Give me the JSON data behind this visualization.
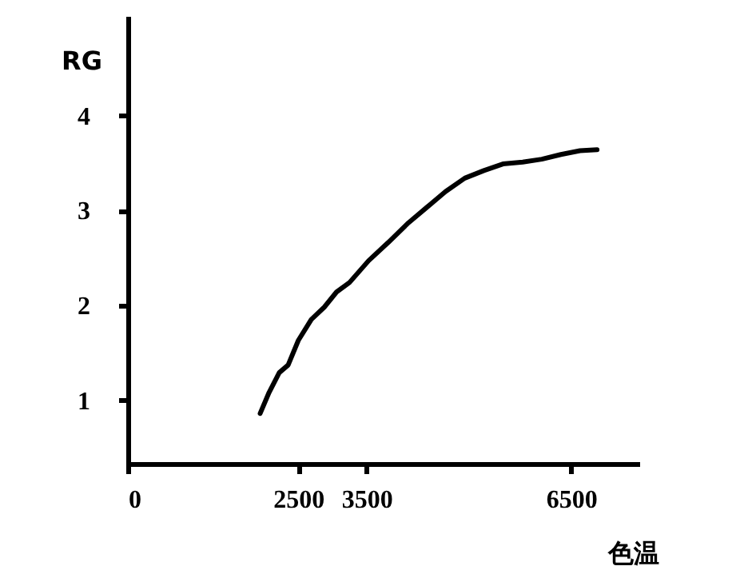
{
  "chart_data": {
    "type": "line",
    "xlabel": "色温",
    "ylabel": "RG",
    "x": [
      1940,
      2070,
      2220,
      2350,
      2500,
      2690,
      2880,
      3060,
      3250,
      3530,
      3815,
      4100,
      4380,
      4660,
      4940,
      5220,
      5500,
      5790,
      6070,
      6350,
      6630,
      6880
    ],
    "series": [
      {
        "color": "#000000",
        "values": [
          0.86,
          1.08,
          1.29,
          1.37,
          1.63,
          1.85,
          1.98,
          2.14,
          2.24,
          2.47,
          2.66,
          2.86,
          3.03,
          3.2,
          3.34,
          3.42,
          3.49,
          3.51,
          3.54,
          3.59,
          3.63,
          3.64
        ]
      }
    ],
    "xlim": [
      0,
      7500
    ],
    "xticks": [
      0,
      2500,
      3500,
      6500
    ],
    "ylim": [
      0.33,
      5.05
    ],
    "yticks": [
      1,
      2,
      3,
      4
    ],
    "grid": false,
    "marker": "none",
    "line_style": "solid"
  }
}
